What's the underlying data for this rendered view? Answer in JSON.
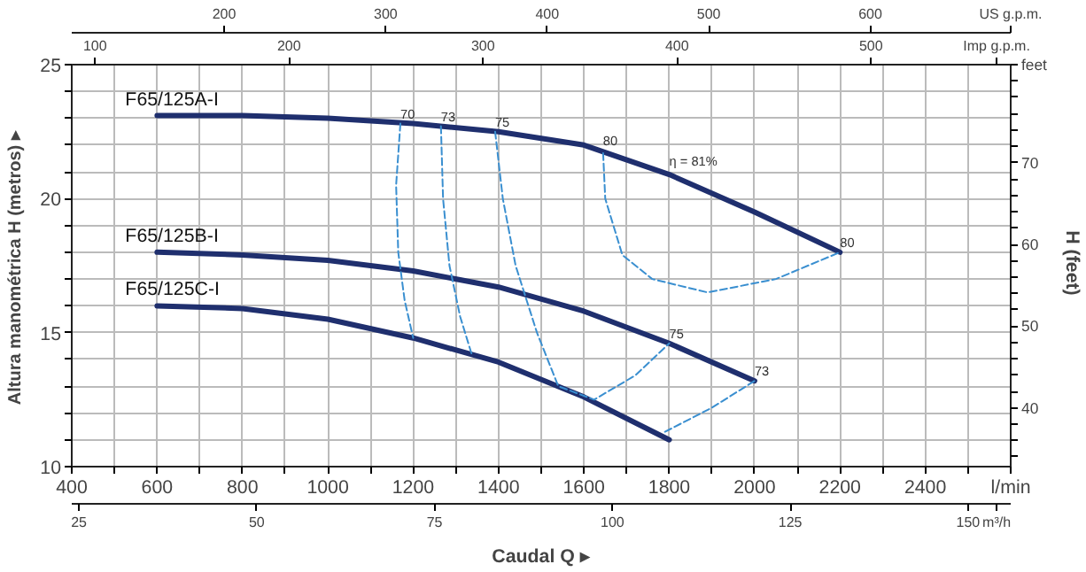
{
  "chart_data": {
    "type": "line",
    "xlabel": "Caudal Q ▸",
    "ylabel": "Altura manométrica H  (metros) ▸",
    "y2label": "H  (feet)",
    "x2label": "US g.p.m.",
    "xlim": [
      400,
      2600
    ],
    "ylim": [
      10,
      25
    ],
    "x2lim": [
      105.7,
      686.9
    ],
    "y2lim": [
      32.8,
      82.0
    ],
    "xticks": [
      400,
      {
        "value": 500,
        "label": null
      },
      600,
      {
        "value": 700,
        "label": null
      },
      800,
      {
        "value": 900,
        "label": null
      },
      1000,
      {
        "value": 1100,
        "label": null
      },
      1200,
      {
        "value": 1300,
        "label": null
      },
      1400,
      {
        "value": 1500,
        "label": null
      },
      1600,
      {
        "value": 1700,
        "label": null
      },
      1800,
      {
        "value": 1900,
        "label": null
      },
      2000,
      {
        "value": 2100,
        "label": null
      },
      2200,
      {
        "value": 2300,
        "label": null
      },
      2400,
      {
        "value": 2500,
        "label": null
      },
      {
        "value": 2600,
        "label": null
      }
    ],
    "yticks": [
      10,
      {
        "value": 11,
        "label": null
      },
      {
        "value": 12,
        "label": null
      },
      {
        "value": 13,
        "label": null
      },
      {
        "value": 14,
        "label": null
      },
      15,
      {
        "value": 16,
        "label": null
      },
      {
        "value": 17,
        "label": null
      },
      {
        "value": 18,
        "label": null
      },
      {
        "value": 19,
        "label": null
      },
      20,
      {
        "value": 21,
        "label": null
      },
      {
        "value": 22,
        "label": null
      },
      {
        "value": 23,
        "label": null
      },
      {
        "value": 24,
        "label": null
      },
      25
    ],
    "x2ticks": [
      200,
      300,
      400,
      500,
      600
    ],
    "y2ticks": [
      {
        "value": 34,
        "label": null
      },
      {
        "value": 36,
        "label": null
      },
      {
        "value": 38,
        "label": null
      },
      40,
      {
        "value": 42,
        "label": null
      },
      {
        "value": 44,
        "label": null
      },
      {
        "value": 46,
        "label": null
      },
      {
        "value": 48,
        "label": null
      },
      50,
      {
        "value": 52,
        "label": null
      },
      {
        "value": 54,
        "label": null
      },
      {
        "value": 56,
        "label": null
      },
      {
        "value": 58,
        "label": null
      },
      60,
      {
        "value": 62,
        "label": null
      },
      {
        "value": 64,
        "label": null
      },
      {
        "value": 66,
        "label": null
      },
      {
        "value": 68,
        "label": null
      },
      70,
      {
        "value": 72,
        "label": null
      },
      {
        "value": 74,
        "label": null
      },
      {
        "value": 76,
        "label": null
      },
      {
        "value": 78,
        "label": null
      },
      {
        "value": 80,
        "label": null
      }
    ],
    "grid": true,
    "series": [
      {
        "name": "F65/125A-I",
        "color": "#1f2f6e",
        "line_style": "solid",
        "x": [
          600,
          800,
          1000,
          1200,
          1400,
          1600,
          1800,
          2000,
          2200
        ],
        "values": [
          23.1,
          23.1,
          23.0,
          22.8,
          22.5,
          22.0,
          20.9,
          19.5,
          18.0
        ]
      },
      {
        "name": "F65/125B-I",
        "color": "#1f2f6e",
        "line_style": "solid",
        "x": [
          600,
          800,
          1000,
          1200,
          1400,
          1600,
          1800,
          2000
        ],
        "values": [
          18.0,
          17.9,
          17.7,
          17.3,
          16.7,
          15.8,
          14.6,
          13.2
        ]
      },
      {
        "name": "F65/125C-I",
        "color": "#1f2f6e",
        "line_style": "solid",
        "x": [
          600,
          800,
          1000,
          1200,
          1400,
          1600,
          1800
        ],
        "values": [
          16.0,
          15.9,
          15.5,
          14.8,
          13.9,
          12.6,
          11.0
        ]
      },
      {
        "color": "#3a8fd0",
        "line_style": "dashed",
        "x": [
          1170,
          1160,
          1165,
          1180,
          1200
        ],
        "values": [
          22.8,
          20.5,
          18.0,
          16.2,
          14.8
        ]
      },
      {
        "color": "#3a8fd0",
        "line_style": "dashed",
        "x": [
          1265,
          1270,
          1285,
          1310,
          1337
        ],
        "values": [
          22.7,
          20.0,
          17.5,
          15.6,
          14.2
        ]
      },
      {
        "color": "#3a8fd0",
        "line_style": "dashed",
        "x": [
          1392,
          1410,
          1440,
          1490,
          1540,
          1624,
          1720,
          1800
        ],
        "values": [
          22.5,
          20.0,
          17.5,
          15.0,
          13.0,
          12.5,
          13.4,
          14.6
        ]
      },
      {
        "color": "#3a8fd0",
        "line_style": "dashed",
        "x": [
          1790,
          1900,
          2000
        ],
        "values": [
          11.3,
          12.2,
          13.2
        ]
      },
      {
        "color": "#3a8fd0",
        "line_style": "dashed",
        "x": [
          1645,
          1650,
          1690,
          1760,
          1890,
          2050,
          2200
        ],
        "values": [
          21.7,
          20.0,
          17.9,
          17.0,
          16.5,
          17.0,
          18.0
        ]
      }
    ],
    "annotations": [
      {
        "text": "70",
        "x": 1170,
        "y": 22.8
      },
      {
        "text": "73",
        "x": 1265,
        "y": 22.7
      },
      {
        "text": "75",
        "x": 1392,
        "y": 22.5
      },
      {
        "text": "80",
        "x": 1645,
        "y": 21.8
      },
      {
        "text": "η = 81%",
        "x": 1800,
        "y": 20.9
      },
      {
        "text": "80",
        "x": 2200,
        "y": 18.0
      },
      {
        "text": "75",
        "x": 1800,
        "y": 14.6
      },
      {
        "text": "73",
        "x": 2000,
        "y": 13.2
      },
      "l/min",
      "feet",
      "Imp g.p.m.",
      "100",
      "200",
      "300",
      "400",
      "500",
      "m³/h",
      "25",
      "50",
      "75",
      "100",
      "125",
      "150"
    ]
  }
}
